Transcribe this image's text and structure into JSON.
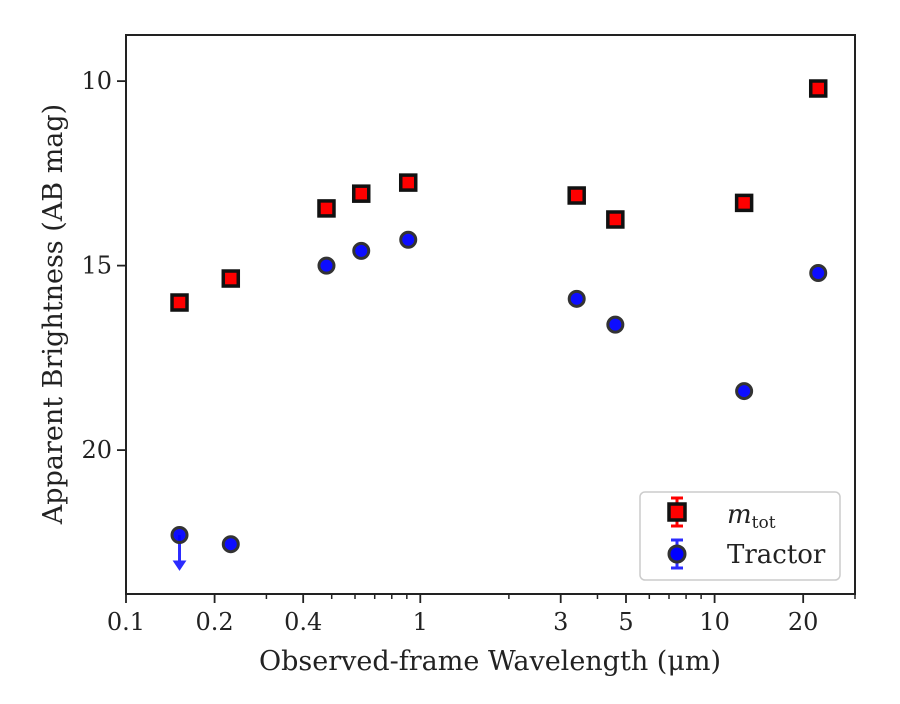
{
  "chart_data": {
    "type": "scatter",
    "xlabel": "Observed-frame Wavelength (μm)",
    "ylabel": "Apparent Brightness (AB mag)",
    "x_scale": "log",
    "y_inverted": true,
    "xlim": [
      0.1,
      30
    ],
    "ylim": [
      23.9,
      8.75
    ],
    "grid": false,
    "legend_placement": "lower right",
    "x_ticks": [
      0.1,
      0.2,
      0.4,
      1,
      3,
      5,
      10,
      20
    ],
    "x_tick_labels": [
      "0.1",
      "0.2",
      "0.4",
      "1",
      "3",
      "5",
      "10",
      "20"
    ],
    "y_ticks": [
      10,
      15,
      20
    ],
    "y_tick_labels": [
      "10",
      "15",
      "20"
    ],
    "series": [
      {
        "name": "m_tot",
        "marker": "square",
        "color": "#ff0000",
        "edge_color": "#111111",
        "points": [
          {
            "x": 0.152,
            "y": 16.0
          },
          {
            "x": 0.227,
            "y": 15.35
          },
          {
            "x": 0.48,
            "y": 13.45
          },
          {
            "x": 0.63,
            "y": 13.05
          },
          {
            "x": 0.91,
            "y": 12.75
          },
          {
            "x": 3.4,
            "y": 13.1
          },
          {
            "x": 4.6,
            "y": 13.75
          },
          {
            "x": 12.6,
            "y": 13.3
          },
          {
            "x": 22.5,
            "y": 10.2
          }
        ]
      },
      {
        "name": "Tractor",
        "marker": "circle",
        "color": "#0000ff",
        "edge_color": "#333333",
        "points": [
          {
            "x": 0.152,
            "y": 22.3,
            "upper_limit": true
          },
          {
            "x": 0.227,
            "y": 22.55
          },
          {
            "x": 0.48,
            "y": 15.0
          },
          {
            "x": 0.63,
            "y": 14.6
          },
          {
            "x": 0.91,
            "y": 14.3
          },
          {
            "x": 3.4,
            "y": 15.9
          },
          {
            "x": 4.6,
            "y": 16.6
          },
          {
            "x": 12.6,
            "y": 18.4
          },
          {
            "x": 22.5,
            "y": 15.2
          }
        ]
      }
    ]
  },
  "legend": {
    "mtot_main": "m",
    "mtot_sub": "tot",
    "tractor": "Tractor"
  }
}
